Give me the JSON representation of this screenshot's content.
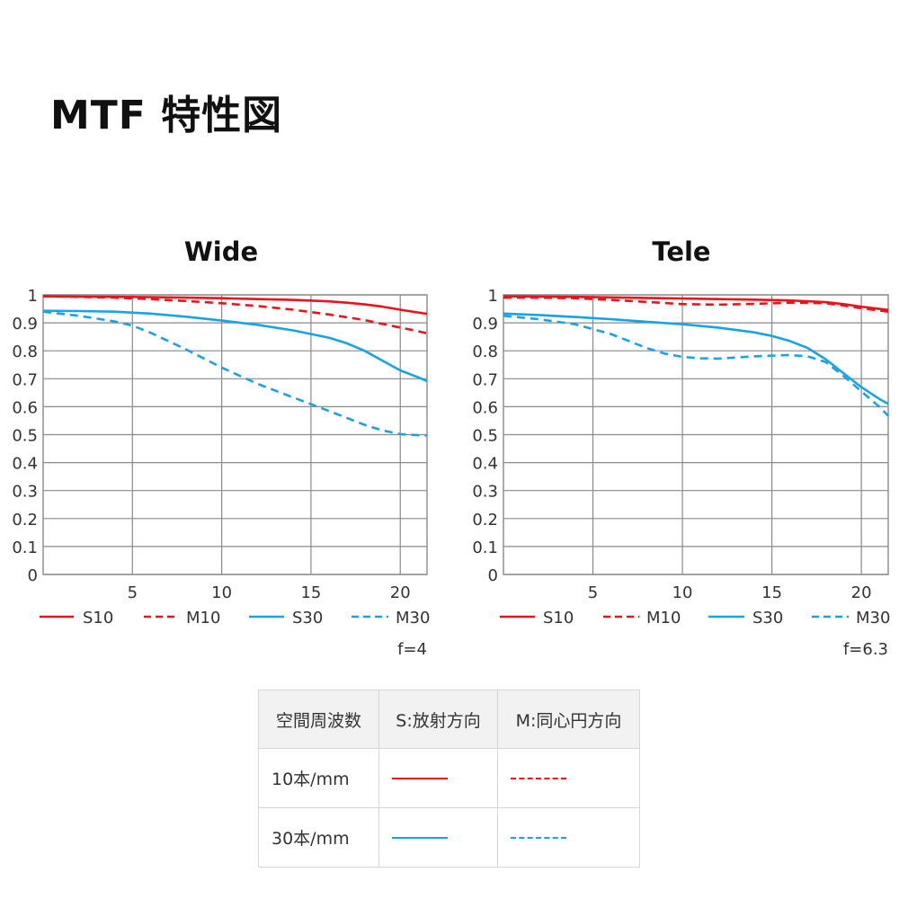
{
  "page": {
    "title": "MTF 特性図"
  },
  "colors": {
    "red": "#e8141c",
    "blue": "#19a3e6",
    "grid": "#8a8a8a",
    "axis": "#8a8a8a"
  },
  "chart_data": [
    {
      "type": "line",
      "title": "Wide",
      "note": "f=4",
      "xlim": [
        0,
        21.5
      ],
      "ylim": [
        0,
        1
      ],
      "xticks": [
        5,
        10,
        15,
        20
      ],
      "yticks": [
        1,
        0.9,
        0.8,
        0.7,
        0.6,
        0.5,
        0.4,
        0.3,
        0.2,
        0.1,
        0
      ],
      "ytick_labels": [
        "1",
        "0.9",
        "0.8",
        "0.7",
        "0.6",
        "0.5",
        "0.4",
        "0.3",
        "0.2",
        "0.1",
        "0"
      ],
      "legend_position": "bottom",
      "series": [
        {
          "name": "S10",
          "color": "red",
          "dash": false,
          "x": [
            0,
            2,
            4,
            6,
            8,
            10,
            12,
            14,
            16,
            17,
            18,
            19,
            20,
            21,
            21.5
          ],
          "y": [
            0.995,
            0.994,
            0.993,
            0.992,
            0.99,
            0.988,
            0.985,
            0.982,
            0.977,
            0.972,
            0.966,
            0.958,
            0.947,
            0.937,
            0.932
          ]
        },
        {
          "name": "M10",
          "color": "red",
          "dash": true,
          "x": [
            0,
            2,
            4,
            6,
            8,
            10,
            12,
            14,
            16,
            18,
            19,
            20,
            21,
            21.5
          ],
          "y": [
            0.995,
            0.993,
            0.99,
            0.985,
            0.978,
            0.97,
            0.96,
            0.947,
            0.93,
            0.91,
            0.896,
            0.883,
            0.87,
            0.862
          ]
        },
        {
          "name": "S30",
          "color": "blue",
          "dash": false,
          "x": [
            0,
            2,
            4,
            6,
            8,
            10,
            12,
            14,
            16,
            17,
            18,
            19,
            20,
            21,
            21.5
          ],
          "y": [
            0.943,
            0.942,
            0.94,
            0.933,
            0.922,
            0.908,
            0.893,
            0.873,
            0.847,
            0.827,
            0.8,
            0.765,
            0.73,
            0.705,
            0.692
          ]
        },
        {
          "name": "M30",
          "color": "blue",
          "dash": true,
          "x": [
            0,
            2,
            4,
            5,
            6,
            8,
            10,
            12,
            14,
            16,
            18,
            19,
            20,
            21,
            21.5
          ],
          "y": [
            0.94,
            0.925,
            0.905,
            0.89,
            0.865,
            0.805,
            0.74,
            0.682,
            0.633,
            0.585,
            0.535,
            0.515,
            0.502,
            0.498,
            0.497
          ]
        }
      ]
    },
    {
      "type": "line",
      "title": "Tele",
      "note": "f=6.3",
      "xlim": [
        0,
        21.5
      ],
      "ylim": [
        0,
        1
      ],
      "xticks": [
        5,
        10,
        15,
        20
      ],
      "yticks": [
        1,
        0.9,
        0.8,
        0.7,
        0.6,
        0.5,
        0.4,
        0.3,
        0.2,
        0.1,
        0
      ],
      "ytick_labels": [
        "1",
        "0.9",
        "0.8",
        "0.7",
        "0.6",
        "0.5",
        "0.4",
        "0.3",
        "0.2",
        "0.1",
        "0"
      ],
      "legend_position": "bottom",
      "series": [
        {
          "name": "S10",
          "color": "red",
          "dash": false,
          "x": [
            0,
            2,
            4,
            6,
            8,
            10,
            12,
            14,
            16,
            18,
            19,
            20,
            21,
            21.5
          ],
          "y": [
            0.995,
            0.994,
            0.993,
            0.991,
            0.989,
            0.987,
            0.985,
            0.983,
            0.98,
            0.974,
            0.967,
            0.958,
            0.95,
            0.946
          ]
        },
        {
          "name": "M10",
          "color": "red",
          "dash": true,
          "x": [
            0,
            2,
            4,
            6,
            8,
            10,
            12,
            14,
            16,
            18,
            19,
            20,
            21,
            21.5
          ],
          "y": [
            0.99,
            0.99,
            0.988,
            0.982,
            0.975,
            0.967,
            0.965,
            0.968,
            0.972,
            0.97,
            0.962,
            0.952,
            0.944,
            0.94
          ]
        },
        {
          "name": "S30",
          "color": "blue",
          "dash": false,
          "x": [
            0,
            2,
            4,
            6,
            8,
            10,
            12,
            14,
            15,
            16,
            17,
            18,
            19,
            20,
            21,
            21.5
          ],
          "y": [
            0.933,
            0.928,
            0.921,
            0.913,
            0.904,
            0.895,
            0.883,
            0.866,
            0.853,
            0.835,
            0.81,
            0.77,
            0.72,
            0.67,
            0.628,
            0.61
          ]
        },
        {
          "name": "M30",
          "color": "blue",
          "dash": true,
          "x": [
            0,
            2,
            4,
            6,
            8,
            9,
            10,
            11,
            12,
            14,
            16,
            17,
            18,
            19,
            20,
            21,
            21.5
          ],
          "y": [
            0.925,
            0.913,
            0.895,
            0.86,
            0.81,
            0.79,
            0.778,
            0.773,
            0.772,
            0.78,
            0.785,
            0.78,
            0.76,
            0.71,
            0.655,
            0.6,
            0.568
          ]
        }
      ]
    }
  ],
  "legend_table": {
    "headers": [
      "空間周波数",
      "S:放射方向",
      "M:同心円方向"
    ],
    "rows": [
      {
        "label": "10本/mm",
        "s_color": "red",
        "m_color": "red"
      },
      {
        "label": "30本/mm",
        "s_color": "blue",
        "m_color": "blue"
      }
    ]
  }
}
